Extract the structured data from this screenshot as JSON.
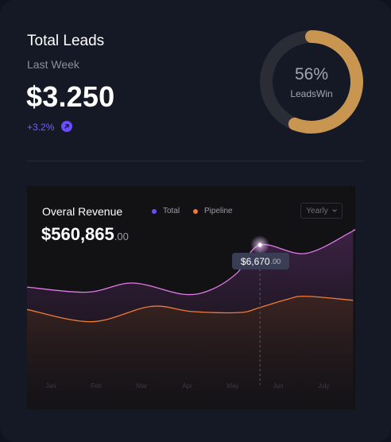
{
  "leads": {
    "title": "Total Leads",
    "period": "Last Week",
    "amount": "$3.250",
    "change": "+3.2%",
    "change_icon": "arrow-up-right-icon",
    "win_rate": "56%",
    "win_rate_value": 0.56,
    "win_rate_label": "LeadsWin"
  },
  "revenue": {
    "title": "Overal Revenue",
    "amount_main": "$560,865",
    "amount_cents": ".00",
    "legend": [
      {
        "name": "Total",
        "color": "#6d4bff"
      },
      {
        "name": "Pipeline",
        "color": "#f07a3a"
      }
    ],
    "range_select": "Yearly",
    "tooltip_main": "$6,670",
    "tooltip_cents": ".00"
  },
  "chart_data": {
    "type": "area",
    "x": [
      "Jan",
      "Feb",
      "Mar",
      "Apr",
      "May",
      "Jun",
      "July"
    ],
    "series": [
      {
        "name": "Total",
        "color": "#e07ae8",
        "points": [
          [
            0,
            4600
          ],
          [
            0.8,
            4350
          ],
          [
            1.8,
            4800
          ],
          [
            2.9,
            4250
          ],
          [
            3.5,
            4450
          ],
          [
            4.1,
            5300
          ],
          [
            4.6,
            6670
          ],
          [
            5.6,
            6250
          ],
          [
            6.6,
            7300
          ],
          [
            6.65,
            7400
          ]
        ]
      },
      {
        "name": "Pipeline",
        "color": "#f07a3a",
        "points": [
          [
            0,
            3500
          ],
          [
            0.9,
            2900
          ],
          [
            2.2,
            3650
          ],
          [
            3.1,
            3400
          ],
          [
            4.15,
            3350
          ],
          [
            4.6,
            3600
          ],
          [
            5.2,
            4000
          ],
          [
            5.6,
            4150
          ],
          [
            6.65,
            3950
          ]
        ]
      }
    ],
    "highlight": {
      "x": 4.6,
      "label": "$6,670.00"
    }
  },
  "colors": {
    "donut_track": "#2a2d35",
    "donut_fill": "#c99652",
    "accent": "#6b4cff"
  }
}
